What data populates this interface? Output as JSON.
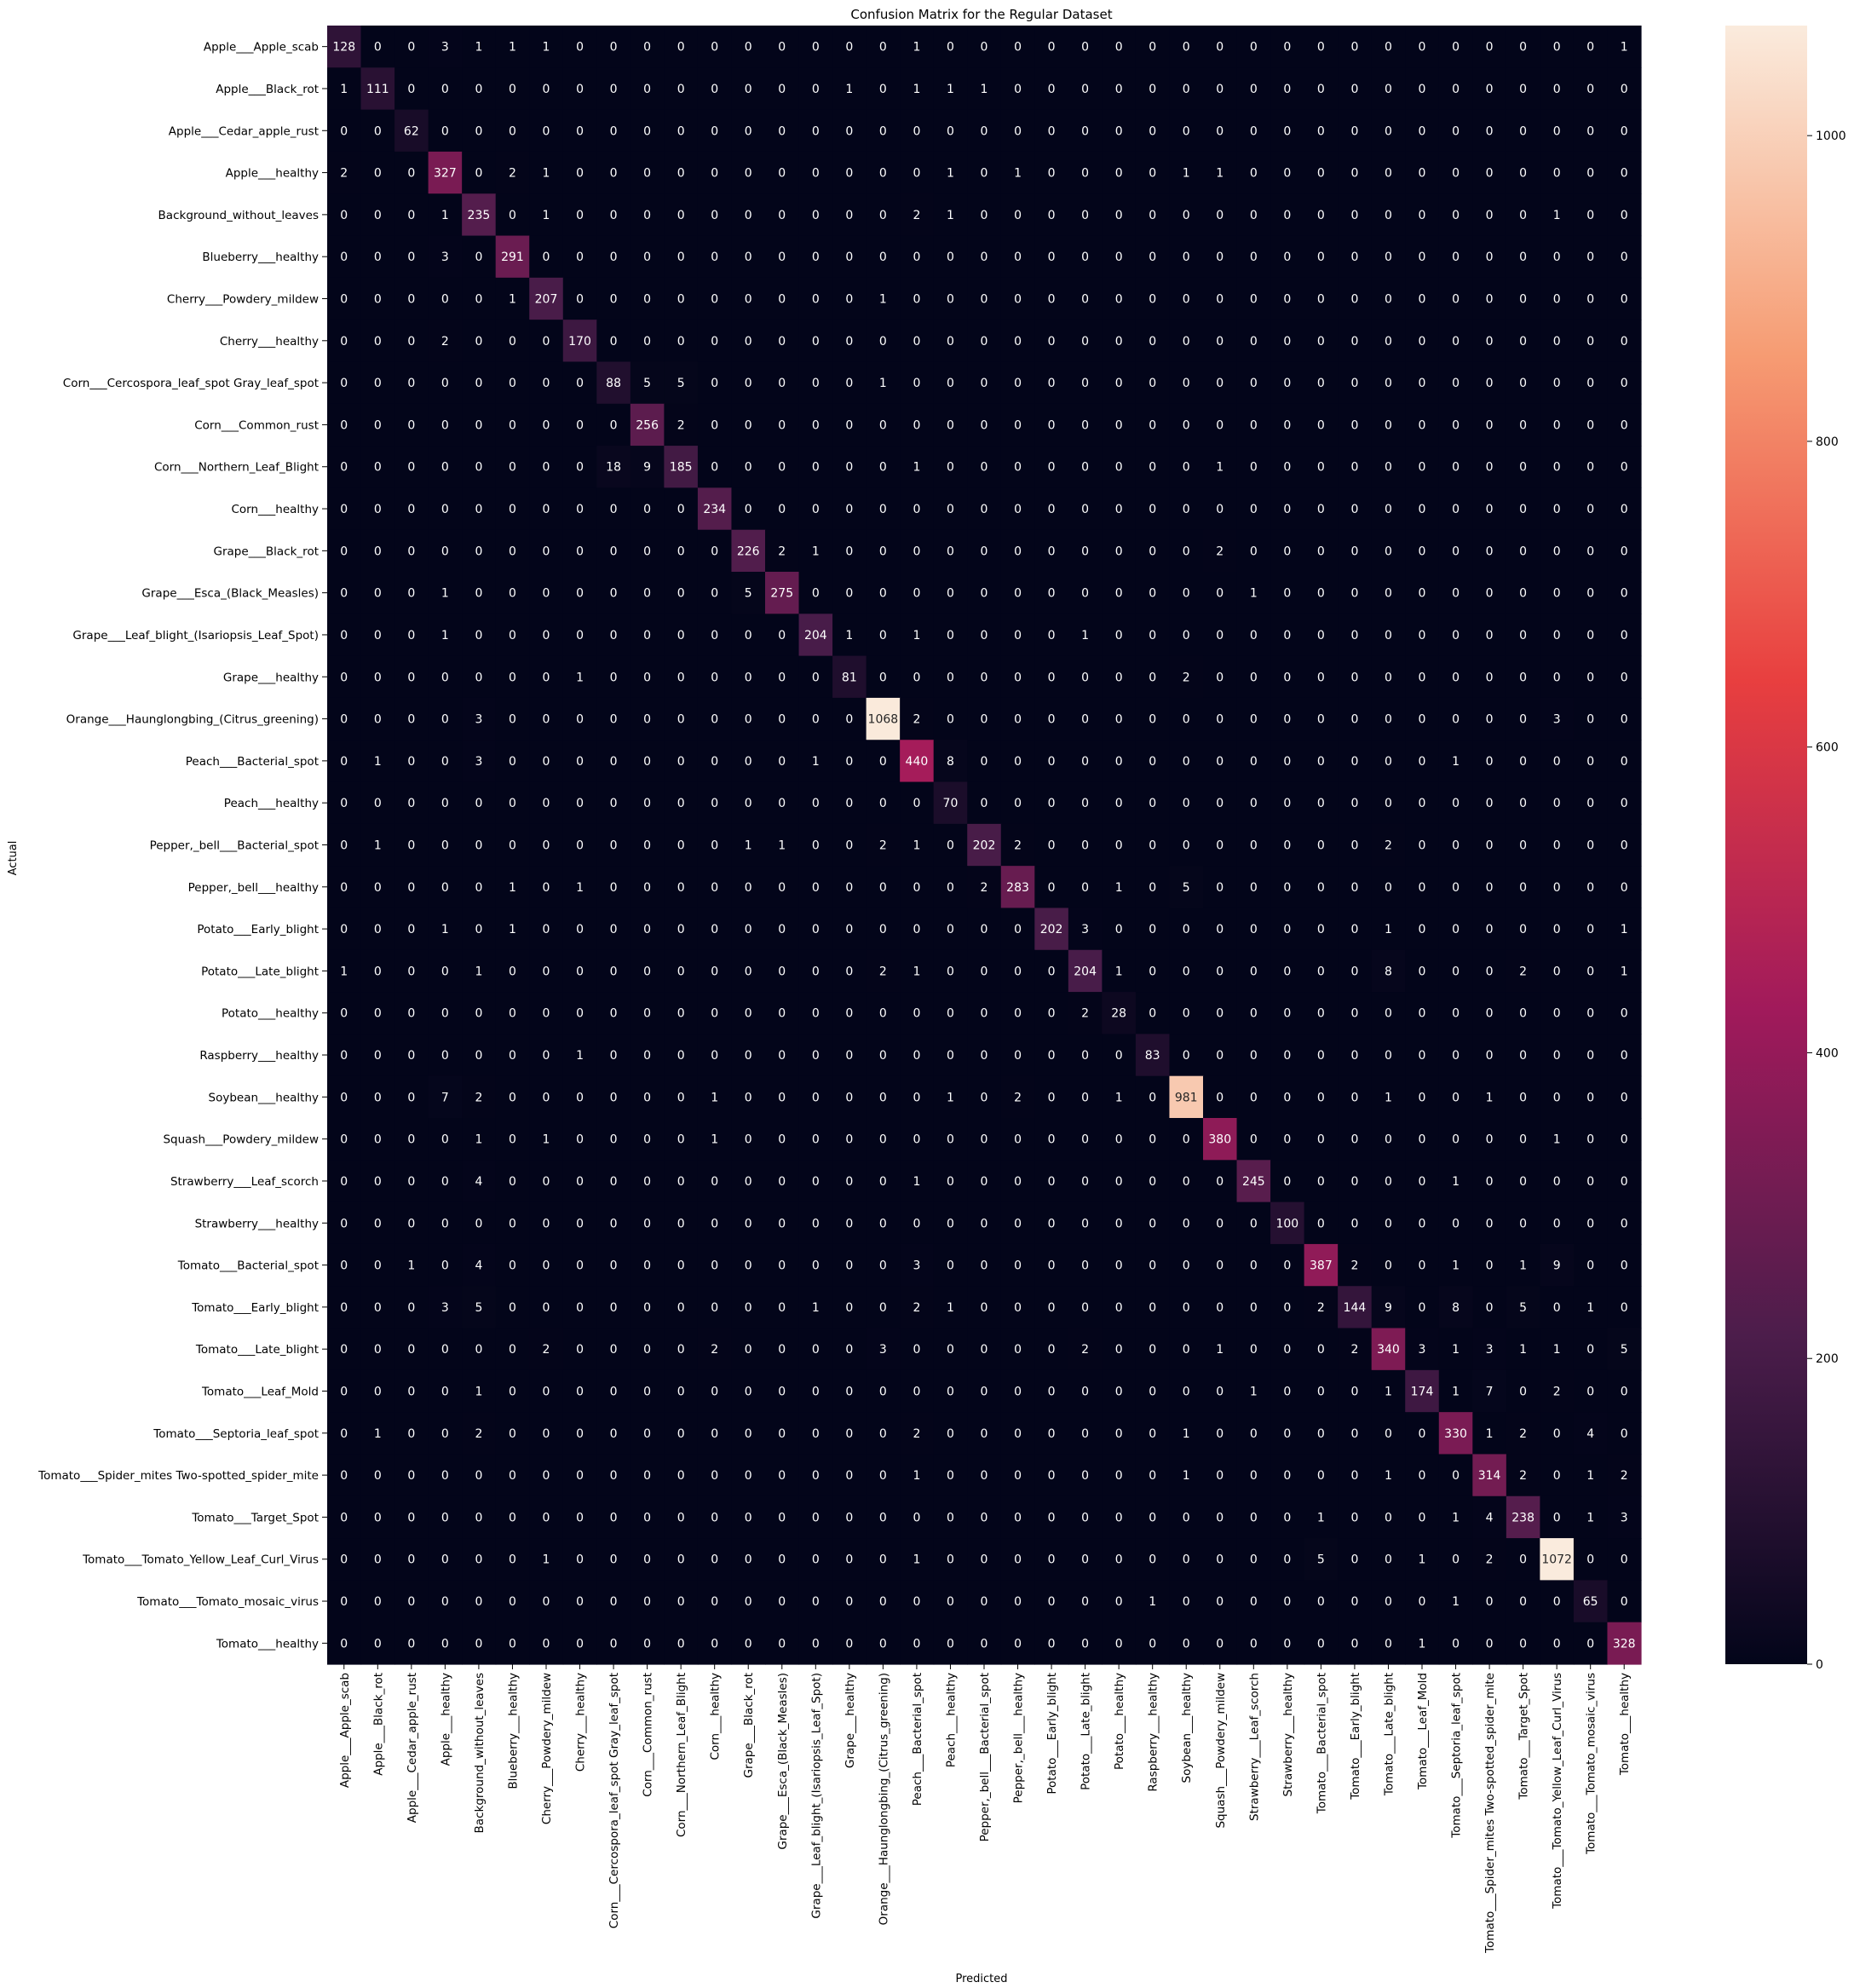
{
  "chart_data": {
    "type": "heatmap",
    "title": "Confusion Matrix for the Regular Dataset",
    "xlabel": "Predicted",
    "ylabel": "Actual",
    "labels": [
      "Apple___Apple_scab",
      "Apple___Black_rot",
      "Apple___Cedar_apple_rust",
      "Apple___healthy",
      "Background_without_leaves",
      "Blueberry___healthy",
      "Cherry___Powdery_mildew",
      "Cherry___healthy",
      "Corn___Cercospora_leaf_spot Gray_leaf_spot",
      "Corn___Common_rust",
      "Corn___Northern_Leaf_Blight",
      "Corn___healthy",
      "Grape___Black_rot",
      "Grape___Esca_(Black_Measles)",
      "Grape___Leaf_blight_(Isariopsis_Leaf_Spot)",
      "Grape___healthy",
      "Orange___Haunglongbing_(Citrus_greening)",
      "Peach___Bacterial_spot",
      "Peach___healthy",
      "Pepper,_bell___Bacterial_spot",
      "Pepper,_bell___healthy",
      "Potato___Early_blight",
      "Potato___Late_blight",
      "Potato___healthy",
      "Raspberry___healthy",
      "Soybean___healthy",
      "Squash___Powdery_mildew",
      "Strawberry___Leaf_scorch",
      "Strawberry___healthy",
      "Tomato___Bacterial_spot",
      "Tomato___Early_blight",
      "Tomato___Late_blight",
      "Tomato___Leaf_Mold",
      "Tomato___Septoria_leaf_spot",
      "Tomato___Spider_mites Two-spotted_spider_mite",
      "Tomato___Target_Spot",
      "Tomato___Tomato_Yellow_Leaf_Curl_Virus",
      "Tomato___Tomato_mosaic_virus",
      "Tomato___healthy"
    ],
    "matrix": [
      [
        128,
        0,
        0,
        3,
        1,
        1,
        1,
        0,
        0,
        0,
        0,
        0,
        0,
        0,
        0,
        0,
        0,
        1,
        0,
        0,
        0,
        0,
        0,
        0,
        0,
        0,
        0,
        0,
        0,
        0,
        0,
        0,
        0,
        0,
        0,
        0,
        0,
        0,
        1
      ],
      [
        1,
        111,
        0,
        0,
        0,
        0,
        0,
        0,
        0,
        0,
        0,
        0,
        0,
        0,
        0,
        1,
        0,
        1,
        1,
        1,
        0,
        0,
        0,
        0,
        0,
        0,
        0,
        0,
        0,
        0,
        0,
        0,
        0,
        0,
        0,
        0,
        0,
        0,
        0
      ],
      [
        0,
        0,
        62,
        0,
        0,
        0,
        0,
        0,
        0,
        0,
        0,
        0,
        0,
        0,
        0,
        0,
        0,
        0,
        0,
        0,
        0,
        0,
        0,
        0,
        0,
        0,
        0,
        0,
        0,
        0,
        0,
        0,
        0,
        0,
        0,
        0,
        0,
        0,
        0
      ],
      [
        2,
        0,
        0,
        327,
        0,
        2,
        1,
        0,
        0,
        0,
        0,
        0,
        0,
        0,
        0,
        0,
        0,
        0,
        1,
        0,
        1,
        0,
        0,
        0,
        0,
        1,
        1,
        0,
        0,
        0,
        0,
        0,
        0,
        0,
        0,
        0,
        0,
        0,
        0
      ],
      [
        0,
        0,
        0,
        1,
        235,
        0,
        1,
        0,
        0,
        0,
        0,
        0,
        0,
        0,
        0,
        0,
        0,
        2,
        1,
        0,
        0,
        0,
        0,
        0,
        0,
        0,
        0,
        0,
        0,
        0,
        0,
        0,
        0,
        0,
        0,
        0,
        1,
        0,
        0
      ],
      [
        0,
        0,
        0,
        3,
        0,
        291,
        0,
        0,
        0,
        0,
        0,
        0,
        0,
        0,
        0,
        0,
        0,
        0,
        0,
        0,
        0,
        0,
        0,
        0,
        0,
        0,
        0,
        0,
        0,
        0,
        0,
        0,
        0,
        0,
        0,
        0,
        0,
        0,
        0
      ],
      [
        0,
        0,
        0,
        0,
        0,
        1,
        207,
        0,
        0,
        0,
        0,
        0,
        0,
        0,
        0,
        0,
        1,
        0,
        0,
        0,
        0,
        0,
        0,
        0,
        0,
        0,
        0,
        0,
        0,
        0,
        0,
        0,
        0,
        0,
        0,
        0,
        0,
        0,
        0
      ],
      [
        0,
        0,
        0,
        2,
        0,
        0,
        0,
        170,
        0,
        0,
        0,
        0,
        0,
        0,
        0,
        0,
        0,
        0,
        0,
        0,
        0,
        0,
        0,
        0,
        0,
        0,
        0,
        0,
        0,
        0,
        0,
        0,
        0,
        0,
        0,
        0,
        0,
        0,
        0
      ],
      [
        0,
        0,
        0,
        0,
        0,
        0,
        0,
        0,
        88,
        5,
        5,
        0,
        0,
        0,
        0,
        0,
        1,
        0,
        0,
        0,
        0,
        0,
        0,
        0,
        0,
        0,
        0,
        0,
        0,
        0,
        0,
        0,
        0,
        0,
        0,
        0,
        0,
        0,
        0
      ],
      [
        0,
        0,
        0,
        0,
        0,
        0,
        0,
        0,
        0,
        256,
        2,
        0,
        0,
        0,
        0,
        0,
        0,
        0,
        0,
        0,
        0,
        0,
        0,
        0,
        0,
        0,
        0,
        0,
        0,
        0,
        0,
        0,
        0,
        0,
        0,
        0,
        0,
        0,
        0
      ],
      [
        0,
        0,
        0,
        0,
        0,
        0,
        0,
        0,
        18,
        9,
        185,
        0,
        0,
        0,
        0,
        0,
        0,
        1,
        0,
        0,
        0,
        0,
        0,
        0,
        0,
        0,
        1,
        0,
        0,
        0,
        0,
        0,
        0,
        0,
        0,
        0,
        0,
        0,
        0
      ],
      [
        0,
        0,
        0,
        0,
        0,
        0,
        0,
        0,
        0,
        0,
        0,
        234,
        0,
        0,
        0,
        0,
        0,
        0,
        0,
        0,
        0,
        0,
        0,
        0,
        0,
        0,
        0,
        0,
        0,
        0,
        0,
        0,
        0,
        0,
        0,
        0,
        0,
        0,
        0
      ],
      [
        0,
        0,
        0,
        0,
        0,
        0,
        0,
        0,
        0,
        0,
        0,
        0,
        226,
        2,
        1,
        0,
        0,
        0,
        0,
        0,
        0,
        0,
        0,
        0,
        0,
        0,
        2,
        0,
        0,
        0,
        0,
        0,
        0,
        0,
        0,
        0,
        0,
        0,
        0
      ],
      [
        0,
        0,
        0,
        1,
        0,
        0,
        0,
        0,
        0,
        0,
        0,
        0,
        5,
        275,
        0,
        0,
        0,
        0,
        0,
        0,
        0,
        0,
        0,
        0,
        0,
        0,
        0,
        1,
        0,
        0,
        0,
        0,
        0,
        0,
        0,
        0,
        0,
        0,
        0
      ],
      [
        0,
        0,
        0,
        1,
        0,
        0,
        0,
        0,
        0,
        0,
        0,
        0,
        0,
        0,
        204,
        1,
        0,
        1,
        0,
        0,
        0,
        0,
        1,
        0,
        0,
        0,
        0,
        0,
        0,
        0,
        0,
        0,
        0,
        0,
        0,
        0,
        0,
        0,
        0
      ],
      [
        0,
        0,
        0,
        0,
        0,
        0,
        0,
        1,
        0,
        0,
        0,
        0,
        0,
        0,
        0,
        81,
        0,
        0,
        0,
        0,
        0,
        0,
        0,
        0,
        0,
        2,
        0,
        0,
        0,
        0,
        0,
        0,
        0,
        0,
        0,
        0,
        0,
        0,
        0
      ],
      [
        0,
        0,
        0,
        0,
        3,
        0,
        0,
        0,
        0,
        0,
        0,
        0,
        0,
        0,
        0,
        0,
        1068,
        2,
        0,
        0,
        0,
        0,
        0,
        0,
        0,
        0,
        0,
        0,
        0,
        0,
        0,
        0,
        0,
        0,
        0,
        0,
        3,
        0,
        0
      ],
      [
        0,
        1,
        0,
        0,
        3,
        0,
        0,
        0,
        0,
        0,
        0,
        0,
        0,
        0,
        1,
        0,
        0,
        440,
        8,
        0,
        0,
        0,
        0,
        0,
        0,
        0,
        0,
        0,
        0,
        0,
        0,
        0,
        0,
        1,
        0,
        0,
        0,
        0,
        0
      ],
      [
        0,
        0,
        0,
        0,
        0,
        0,
        0,
        0,
        0,
        0,
        0,
        0,
        0,
        0,
        0,
        0,
        0,
        0,
        70,
        0,
        0,
        0,
        0,
        0,
        0,
        0,
        0,
        0,
        0,
        0,
        0,
        0,
        0,
        0,
        0,
        0,
        0,
        0,
        0
      ],
      [
        0,
        1,
        0,
        0,
        0,
        0,
        0,
        0,
        0,
        0,
        0,
        0,
        1,
        1,
        0,
        0,
        2,
        1,
        0,
        202,
        2,
        0,
        0,
        0,
        0,
        0,
        0,
        0,
        0,
        0,
        0,
        2,
        0,
        0,
        0,
        0,
        0,
        0,
        0
      ],
      [
        0,
        0,
        0,
        0,
        0,
        1,
        0,
        1,
        0,
        0,
        0,
        0,
        0,
        0,
        0,
        0,
        0,
        0,
        0,
        2,
        283,
        0,
        0,
        1,
        0,
        5,
        0,
        0,
        0,
        0,
        0,
        0,
        0,
        0,
        0,
        0,
        0,
        0,
        0
      ],
      [
        0,
        0,
        0,
        1,
        0,
        1,
        0,
        0,
        0,
        0,
        0,
        0,
        0,
        0,
        0,
        0,
        0,
        0,
        0,
        0,
        0,
        202,
        3,
        0,
        0,
        0,
        0,
        0,
        0,
        0,
        0,
        1,
        0,
        0,
        0,
        0,
        0,
        0,
        1
      ],
      [
        1,
        0,
        0,
        0,
        1,
        0,
        0,
        0,
        0,
        0,
        0,
        0,
        0,
        0,
        0,
        0,
        2,
        1,
        0,
        0,
        0,
        0,
        204,
        1,
        0,
        0,
        0,
        0,
        0,
        0,
        0,
        8,
        0,
        0,
        0,
        2,
        0,
        0,
        1
      ],
      [
        0,
        0,
        0,
        0,
        0,
        0,
        0,
        0,
        0,
        0,
        0,
        0,
        0,
        0,
        0,
        0,
        0,
        0,
        0,
        0,
        0,
        0,
        2,
        28,
        0,
        0,
        0,
        0,
        0,
        0,
        0,
        0,
        0,
        0,
        0,
        0,
        0,
        0,
        0
      ],
      [
        0,
        0,
        0,
        0,
        0,
        0,
        0,
        1,
        0,
        0,
        0,
        0,
        0,
        0,
        0,
        0,
        0,
        0,
        0,
        0,
        0,
        0,
        0,
        0,
        83,
        0,
        0,
        0,
        0,
        0,
        0,
        0,
        0,
        0,
        0,
        0,
        0,
        0,
        0
      ],
      [
        0,
        0,
        0,
        7,
        2,
        0,
        0,
        0,
        0,
        0,
        0,
        1,
        0,
        0,
        0,
        0,
        0,
        0,
        1,
        0,
        2,
        0,
        0,
        1,
        0,
        981,
        0,
        0,
        0,
        0,
        0,
        1,
        0,
        0,
        1,
        0,
        0,
        0,
        0
      ],
      [
        0,
        0,
        0,
        0,
        1,
        0,
        1,
        0,
        0,
        0,
        0,
        1,
        0,
        0,
        0,
        0,
        0,
        0,
        0,
        0,
        0,
        0,
        0,
        0,
        0,
        0,
        380,
        0,
        0,
        0,
        0,
        0,
        0,
        0,
        0,
        0,
        1,
        0,
        0
      ],
      [
        0,
        0,
        0,
        0,
        4,
        0,
        0,
        0,
        0,
        0,
        0,
        0,
        0,
        0,
        0,
        0,
        0,
        1,
        0,
        0,
        0,
        0,
        0,
        0,
        0,
        0,
        0,
        245,
        0,
        0,
        0,
        0,
        0,
        1,
        0,
        0,
        0,
        0,
        0
      ],
      [
        0,
        0,
        0,
        0,
        0,
        0,
        0,
        0,
        0,
        0,
        0,
        0,
        0,
        0,
        0,
        0,
        0,
        0,
        0,
        0,
        0,
        0,
        0,
        0,
        0,
        0,
        0,
        0,
        100,
        0,
        0,
        0,
        0,
        0,
        0,
        0,
        0,
        0,
        0
      ],
      [
        0,
        0,
        1,
        0,
        4,
        0,
        0,
        0,
        0,
        0,
        0,
        0,
        0,
        0,
        0,
        0,
        0,
        3,
        0,
        0,
        0,
        0,
        0,
        0,
        0,
        0,
        0,
        0,
        0,
        387,
        2,
        0,
        0,
        1,
        0,
        1,
        9,
        0,
        0
      ],
      [
        0,
        0,
        0,
        3,
        5,
        0,
        0,
        0,
        0,
        0,
        0,
        0,
        0,
        0,
        1,
        0,
        0,
        2,
        1,
        0,
        0,
        0,
        0,
        0,
        0,
        0,
        0,
        0,
        0,
        2,
        144,
        9,
        0,
        8,
        0,
        5,
        0,
        1,
        0
      ],
      [
        0,
        0,
        0,
        0,
        0,
        0,
        2,
        0,
        0,
        0,
        0,
        2,
        0,
        0,
        0,
        0,
        3,
        0,
        0,
        0,
        0,
        0,
        2,
        0,
        0,
        0,
        1,
        0,
        0,
        0,
        2,
        340,
        3,
        1,
        3,
        1,
        1,
        0,
        5
      ],
      [
        0,
        0,
        0,
        0,
        1,
        0,
        0,
        0,
        0,
        0,
        0,
        0,
        0,
        0,
        0,
        0,
        0,
        0,
        0,
        0,
        0,
        0,
        0,
        0,
        0,
        0,
        0,
        1,
        0,
        0,
        0,
        1,
        174,
        1,
        7,
        0,
        2,
        0,
        0
      ],
      [
        0,
        1,
        0,
        0,
        2,
        0,
        0,
        0,
        0,
        0,
        0,
        0,
        0,
        0,
        0,
        0,
        0,
        2,
        0,
        0,
        0,
        0,
        0,
        0,
        0,
        1,
        0,
        0,
        0,
        0,
        0,
        0,
        0,
        330,
        1,
        2,
        0,
        4,
        0
      ],
      [
        0,
        0,
        0,
        0,
        0,
        0,
        0,
        0,
        0,
        0,
        0,
        0,
        0,
        0,
        0,
        0,
        0,
        1,
        0,
        0,
        0,
        0,
        0,
        0,
        0,
        1,
        0,
        0,
        0,
        0,
        0,
        1,
        0,
        0,
        314,
        2,
        0,
        1,
        2
      ],
      [
        0,
        0,
        0,
        0,
        0,
        0,
        0,
        0,
        0,
        0,
        0,
        0,
        0,
        0,
        0,
        0,
        0,
        0,
        0,
        0,
        0,
        0,
        0,
        0,
        0,
        0,
        0,
        0,
        0,
        1,
        0,
        0,
        0,
        1,
        4,
        238,
        0,
        1,
        3
      ],
      [
        0,
        0,
        0,
        0,
        0,
        0,
        1,
        0,
        0,
        0,
        0,
        0,
        0,
        0,
        0,
        0,
        0,
        1,
        0,
        0,
        0,
        0,
        0,
        0,
        0,
        0,
        0,
        0,
        0,
        5,
        0,
        0,
        1,
        0,
        2,
        0,
        1072,
        0,
        0
      ],
      [
        0,
        0,
        0,
        0,
        0,
        0,
        0,
        0,
        0,
        0,
        0,
        0,
        0,
        0,
        0,
        0,
        0,
        0,
        0,
        0,
        0,
        0,
        0,
        0,
        1,
        0,
        0,
        0,
        0,
        0,
        0,
        0,
        0,
        1,
        0,
        0,
        0,
        65,
        0
      ],
      [
        0,
        0,
        0,
        0,
        0,
        0,
        0,
        0,
        0,
        0,
        0,
        0,
        0,
        0,
        0,
        0,
        0,
        0,
        0,
        0,
        0,
        0,
        0,
        0,
        0,
        0,
        0,
        0,
        0,
        0,
        0,
        0,
        1,
        0,
        0,
        0,
        0,
        0,
        328
      ]
    ],
    "vmin": 0,
    "vmax": 1072,
    "colorbar_ticks": [
      0,
      200,
      400,
      600,
      800,
      1000
    ],
    "colormap": "rocket",
    "colormap_stops": [
      "#03051a",
      "#4c1d4b",
      "#a11a5b",
      "#e83f3f",
      "#f69c73",
      "#faebdd"
    ]
  }
}
